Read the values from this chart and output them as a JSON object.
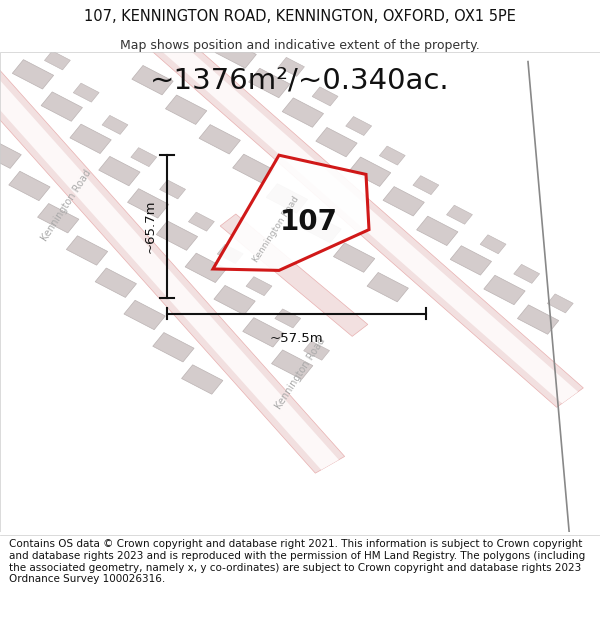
{
  "title_line1": "107, KENNINGTON ROAD, KENNINGTON, OXFORD, OX1 5PE",
  "title_line2": "Map shows position and indicative extent of the property.",
  "area_label": "~1376m²/~0.340ac.",
  "property_label": "107",
  "dim_height": "~65.7m",
  "dim_width": "~57.5m",
  "footer_text": "Contains OS data © Crown copyright and database right 2021. This information is subject to Crown copyright and database rights 2023 and is reproduced with the permission of HM Land Registry. The polygons (including the associated geometry, namely x, y co-ordinates) are subject to Crown copyright and database rights 2023 Ordnance Survey 100026316.",
  "map_bg": "#f7f3f3",
  "road_line_color": "#e8b0b0",
  "road_fill_color": "#f2e0e0",
  "building_fill": "#d4cccc",
  "building_edge": "#bbb3b3",
  "property_red": "#cc0000",
  "dim_color": "#111111",
  "road_label_color": "#aaaaaa",
  "title_fontsize": 10.5,
  "subtitle_fontsize": 9,
  "area_fontsize": 21,
  "prop_label_fontsize": 20,
  "dim_fontsize": 9.5,
  "footer_fontsize": 7.5,
  "road_label_fontsize": 7
}
